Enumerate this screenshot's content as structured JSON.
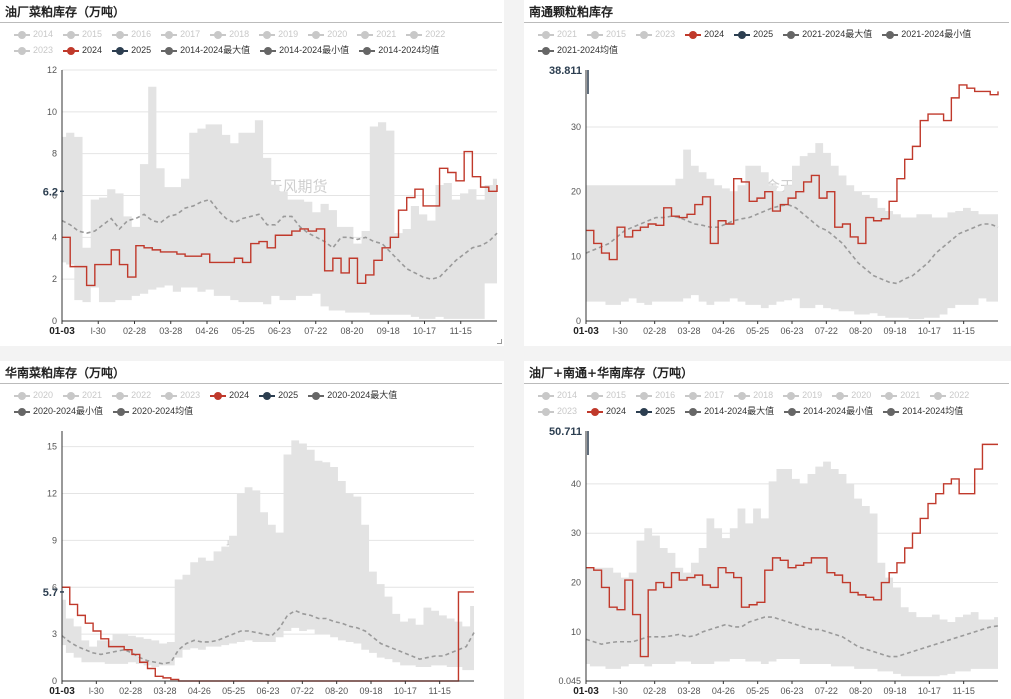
{
  "watermark": "紫金天风期货",
  "x_ticks": [
    "01-03",
    "l-30",
    "02-28",
    "03-28",
    "04-26",
    "05-25",
    "06-23",
    "07-22",
    "08-20",
    "09-18",
    "10-17",
    "11-15"
  ],
  "charts": [
    {
      "title": "油厂菜粕库存（万吨）",
      "legend": [
        {
          "label": "2014",
          "color": "#c8c8c8",
          "state": "off"
        },
        {
          "label": "2015",
          "color": "#c8c8c8",
          "state": "off"
        },
        {
          "label": "2016",
          "color": "#c8c8c8",
          "state": "off"
        },
        {
          "label": "2017",
          "color": "#c8c8c8",
          "state": "off"
        },
        {
          "label": "2018",
          "color": "#c8c8c8",
          "state": "off"
        },
        {
          "label": "2019",
          "color": "#c8c8c8",
          "state": "off"
        },
        {
          "label": "2020",
          "color": "#c8c8c8",
          "state": "off"
        },
        {
          "label": "2021",
          "color": "#c8c8c8",
          "state": "off"
        },
        {
          "label": "2022",
          "color": "#c8c8c8",
          "state": "off"
        },
        {
          "label": "2023",
          "color": "#c8c8c8",
          "state": "off"
        },
        {
          "label": "2024",
          "color": "#c0392b",
          "state": "on"
        },
        {
          "label": "2025",
          "color": "#2c3e50",
          "state": "on"
        },
        {
          "label": "2014-2024最大值",
          "color": "#666666",
          "state": "on"
        },
        {
          "label": "2014-2024最小值",
          "color": "#666666",
          "state": "on"
        },
        {
          "label": "2014-2024均值",
          "color": "#666666",
          "state": "on"
        }
      ],
      "y_ticks": [
        "0",
        "2",
        "4",
        "6",
        "8",
        "10",
        "12"
      ],
      "ylim": [
        0,
        12
      ],
      "marker_label": "6.2",
      "marker_value": 6.2,
      "band_max": [
        8.8,
        9,
        8.8,
        3.5,
        5.8,
        5.9,
        6.3,
        6.1,
        5,
        4.5,
        7.5,
        11.2,
        7.3,
        6.4,
        6.4,
        6.8,
        9,
        9.2,
        9.4,
        9.4,
        8.9,
        8.5,
        9,
        9,
        9.6,
        7.8,
        6.5,
        6.2,
        5.8,
        5.8,
        5.7,
        5.2,
        5.6,
        5.3,
        4.5,
        4.5,
        3.7,
        4.3,
        9.3,
        9.5,
        9.1,
        4.2,
        4.4,
        5.5,
        5.1,
        4.8,
        6.5,
        6.6,
        5.8,
        6.1,
        6.3,
        5.8,
        6.5,
        6.8
      ],
      "band_min": [
        2.8,
        2.7,
        1,
        0.9,
        1.6,
        0.9,
        0.9,
        1,
        1,
        1.2,
        1.3,
        1.5,
        1.6,
        1.7,
        1.4,
        1.6,
        1.6,
        1.4,
        1.5,
        1.2,
        1.2,
        1,
        0.9,
        0.9,
        0.9,
        0.8,
        1.2,
        1,
        1,
        1.2,
        1.2,
        1.3,
        0.7,
        0.5,
        0.5,
        0.4,
        0.4,
        0.4,
        0.3,
        0.3,
        0.3,
        0.3,
        0.3,
        0.2,
        0.1,
        0.1,
        0.2,
        0.1,
        0.1,
        0.1,
        0.1,
        0.1,
        1.8,
        1.8
      ],
      "avg": [
        4.8,
        4.6,
        4.3,
        4.2,
        4.3,
        4.6,
        4.9,
        4.4,
        4.8,
        4.9,
        5.1,
        4.8,
        4.7,
        5,
        5.1,
        5.4,
        5.5,
        5.7,
        5.8,
        5.3,
        4.9,
        4.7,
        4.9,
        5,
        5.1,
        4.6,
        4.6,
        5,
        5,
        4.5,
        4.2,
        4,
        3.8,
        3.5,
        4,
        4,
        3.9,
        4,
        3.8,
        3.7,
        3.3,
        2.9,
        2.5,
        2.3,
        2.1,
        2,
        2.1,
        2.5,
        2.9,
        3.2,
        3.5,
        3.6,
        3.8,
        4.2
      ],
      "current": [
        4,
        2.6,
        2.6,
        1.7,
        2.7,
        2.7,
        3.4,
        2.7,
        2.1,
        3.6,
        3.5,
        3.4,
        3.3,
        3.3,
        3.2,
        3.1,
        3.1,
        3.2,
        2.8,
        2.8,
        2.8,
        3,
        2.8,
        3.7,
        3.8,
        3.5,
        4.1,
        4.1,
        4.3,
        4.4,
        4.3,
        4.4,
        2.4,
        3,
        2.3,
        3,
        1.8,
        2.2,
        2.9,
        3.5,
        4,
        5.3,
        5.9,
        6.3,
        5.5,
        5.5,
        7.3,
        7.1,
        6.7,
        8.1,
        6.9,
        6.4,
        6.2,
        6.5
      ]
    },
    {
      "title": "南通颗粒粕库存",
      "legend": [
        {
          "label": "2021",
          "color": "#c8c8c8",
          "state": "off"
        },
        {
          "label": "2015",
          "color": "#c8c8c8",
          "state": "off"
        },
        {
          "label": "2023",
          "color": "#c8c8c8",
          "state": "off"
        },
        {
          "label": "2024",
          "color": "#c0392b",
          "state": "on"
        },
        {
          "label": "2025",
          "color": "#2c3e50",
          "state": "on"
        },
        {
          "label": "2021-2024最大值",
          "color": "#666666",
          "state": "on"
        },
        {
          "label": "2021-2024最小值",
          "color": "#666666",
          "state": "on"
        },
        {
          "label": "2021-2024均值",
          "color": "#666666",
          "state": "on"
        }
      ],
      "y_ticks": [
        "0",
        "10",
        "20",
        "30"
      ],
      "ylim": [
        0,
        38.811
      ],
      "marker_label": "38.811",
      "marker_value": 38.811,
      "band_max": [
        21,
        21,
        21,
        21,
        21,
        21,
        21,
        21,
        21,
        21,
        21,
        21,
        22,
        26.5,
        24,
        23,
        22,
        21,
        20.5,
        20,
        21,
        24,
        24,
        23,
        21,
        20,
        21,
        24,
        25.5,
        26,
        27.5,
        26,
        24,
        22.5,
        21,
        20,
        19.5,
        19,
        17.5,
        17,
        16.5,
        16,
        16,
        16.5,
        16.5,
        16,
        16,
        16.8,
        17,
        17.5,
        17,
        16.5,
        16.5,
        16.5
      ],
      "band_min": [
        3,
        3,
        3,
        2.5,
        2.5,
        3,
        3.5,
        2.8,
        2.5,
        3,
        3,
        3,
        3,
        3.5,
        4,
        3,
        2.5,
        3,
        3,
        3.5,
        3,
        2.5,
        2.5,
        2,
        2.5,
        3,
        3.2,
        3.5,
        2,
        2,
        2.5,
        2,
        1.8,
        1.5,
        1.5,
        1,
        1,
        1.2,
        0.8,
        0.5,
        0.5,
        0.5,
        0.3,
        0.3,
        0.5,
        0.5,
        1,
        2,
        2.5,
        2.5,
        2.5,
        3.5,
        3,
        3
      ],
      "avg": [
        10.5,
        11,
        11.5,
        12,
        13,
        14,
        14.5,
        15,
        15.5,
        16,
        16,
        16.2,
        16,
        15.5,
        15,
        14.8,
        14.5,
        14.5,
        15,
        15.5,
        15.8,
        16,
        16.5,
        17,
        17.5,
        17.8,
        18,
        17.5,
        16.5,
        15.5,
        14.5,
        14,
        13,
        12,
        10.5,
        9,
        8,
        7,
        6.5,
        6,
        5.8,
        6.5,
        7,
        8,
        9,
        10.5,
        11.5,
        12.5,
        13.5,
        14,
        14.5,
        15,
        15,
        14.5
      ],
      "current": [
        14,
        12,
        10.5,
        9.5,
        14.5,
        13,
        14,
        14.5,
        15,
        14.8,
        17.5,
        16.2,
        16,
        16.5,
        18,
        19.2,
        12,
        15.5,
        15,
        22,
        21.5,
        18.5,
        19,
        20,
        17,
        18,
        19,
        20,
        21.5,
        22.5,
        19,
        20,
        14.5,
        15,
        13,
        12,
        16,
        15.5,
        15.8,
        18.5,
        22,
        25,
        27,
        31,
        32,
        32,
        31,
        34.5,
        36.5,
        36,
        35.5,
        35.5,
        35,
        35.5
      ]
    },
    {
      "title": "华南菜粕库存（万吨）",
      "legend": [
        {
          "label": "2020",
          "color": "#c8c8c8",
          "state": "off"
        },
        {
          "label": "2021",
          "color": "#c8c8c8",
          "state": "off"
        },
        {
          "label": "2022",
          "color": "#c8c8c8",
          "state": "off"
        },
        {
          "label": "2023",
          "color": "#c8c8c8",
          "state": "off"
        },
        {
          "label": "2024",
          "color": "#c0392b",
          "state": "on"
        },
        {
          "label": "2025",
          "color": "#2c3e50",
          "state": "on"
        },
        {
          "label": "2020-2024最大值",
          "color": "#666666",
          "state": "on"
        },
        {
          "label": "2020-2024最小值",
          "color": "#666666",
          "state": "on"
        },
        {
          "label": "2020-2024均值",
          "color": "#666666",
          "state": "on"
        }
      ],
      "y_ticks": [
        "0",
        "3",
        "6",
        "9",
        "12",
        "15"
      ],
      "ylim": [
        0,
        16
      ],
      "marker_label": "5.7",
      "marker_value": 5.7,
      "band_max": [
        5.2,
        4,
        3.5,
        2.6,
        2.2,
        2.6,
        2.6,
        3,
        3,
        2.9,
        2.8,
        2.7,
        2.6,
        2.4,
        2.5,
        6.5,
        6.8,
        7.6,
        7.9,
        7.7,
        8.3,
        8.6,
        9.3,
        12,
        12.4,
        12.2,
        10.8,
        10,
        9.5,
        14.5,
        15.4,
        15.2,
        14.8,
        14.1,
        14,
        13.7,
        12.8,
        12,
        11.8,
        10,
        7,
        6.2,
        5.4,
        4.3,
        3.8,
        4,
        3.6,
        4.7,
        4.5,
        4.2,
        4,
        3.8,
        3.5,
        4.8
      ],
      "band_min": [
        2.3,
        1.8,
        1.5,
        1.2,
        1.2,
        1.2,
        1.1,
        1.1,
        1.1,
        1.2,
        1.1,
        1,
        0.9,
        1,
        1,
        1.5,
        2,
        2.1,
        2,
        2.2,
        2.2,
        2.3,
        2.4,
        2.5,
        2.6,
        2.5,
        2.5,
        2.5,
        2.8,
        3.2,
        3.4,
        3.2,
        3.3,
        3,
        3,
        2.8,
        2.6,
        2.5,
        2.4,
        2,
        1.8,
        1.5,
        1.4,
        1.2,
        1,
        1,
        0.9,
        0.9,
        1,
        1,
        0.9,
        0.9,
        0.7,
        0.7
      ],
      "avg": [
        2.9,
        2.5,
        2.2,
        2,
        1.8,
        1.7,
        1.8,
        1.9,
        2,
        1.8,
        1.5,
        1.3,
        1.2,
        1.1,
        1.2,
        2,
        2.4,
        2.6,
        2.5,
        2.5,
        2.6,
        2.8,
        3,
        3.2,
        3.2,
        3.1,
        3,
        2.9,
        3.4,
        4.2,
        4.5,
        4.3,
        4.2,
        4,
        4,
        3.8,
        3.7,
        3.5,
        3.4,
        3.2,
        2.8,
        2.4,
        2.2,
        2,
        1.8,
        1.6,
        1.4,
        1.5,
        1.6,
        1.6,
        1.8,
        2,
        2.2,
        3.1
      ],
      "current": [
        6,
        4.9,
        4.2,
        3.7,
        3.2,
        2.7,
        2.2,
        2.2,
        2,
        1.7,
        1.2,
        0.8,
        0.3,
        0.2,
        0.1,
        0,
        0,
        0,
        0,
        0,
        0,
        0,
        0,
        0,
        0,
        0,
        0,
        0,
        0,
        0,
        0,
        0,
        0,
        0,
        0,
        0,
        0,
        0,
        0,
        0,
        0,
        0,
        0,
        0,
        0,
        0,
        0,
        0,
        0,
        0,
        0,
        5.7,
        5.7,
        5.7
      ]
    },
    {
      "title": "油厂+南通+华南库存（万吨）",
      "legend": [
        {
          "label": "2014",
          "color": "#c8c8c8",
          "state": "off"
        },
        {
          "label": "2015",
          "color": "#c8c8c8",
          "state": "off"
        },
        {
          "label": "2016",
          "color": "#c8c8c8",
          "state": "off"
        },
        {
          "label": "2017",
          "color": "#c8c8c8",
          "state": "off"
        },
        {
          "label": "2018",
          "color": "#c8c8c8",
          "state": "off"
        },
        {
          "label": "2019",
          "color": "#c8c8c8",
          "state": "off"
        },
        {
          "label": "2020",
          "color": "#c8c8c8",
          "state": "off"
        },
        {
          "label": "2021",
          "color": "#c8c8c8",
          "state": "off"
        },
        {
          "label": "2022",
          "color": "#c8c8c8",
          "state": "off"
        },
        {
          "label": "2023",
          "color": "#c8c8c8",
          "state": "off"
        },
        {
          "label": "2024",
          "color": "#c0392b",
          "state": "on"
        },
        {
          "label": "2025",
          "color": "#2c3e50",
          "state": "on"
        },
        {
          "label": "2014-2024最大值",
          "color": "#666666",
          "state": "on"
        },
        {
          "label": "2014-2024最小值",
          "color": "#666666",
          "state": "on"
        },
        {
          "label": "2014-2024均值",
          "color": "#666666",
          "state": "on"
        }
      ],
      "y_ticks": [
        "0.045",
        "10",
        "20",
        "30",
        "40"
      ],
      "ylim": [
        0.045,
        50.711
      ],
      "marker_label": "50.711",
      "marker_value": 50.711,
      "band_max": [
        23,
        23,
        23,
        23,
        22,
        21,
        22,
        28.5,
        31,
        29.5,
        27,
        26,
        23,
        22,
        24,
        27,
        33,
        31,
        29,
        31,
        35,
        32,
        35,
        33,
        40.5,
        43,
        43,
        41,
        40,
        42,
        43.5,
        44.5,
        43,
        42,
        40,
        37,
        35.5,
        34,
        24,
        21,
        19,
        15,
        14,
        13,
        13,
        13.5,
        12.5,
        12,
        13,
        13.5,
        14,
        12.5,
        12.5,
        13
      ],
      "band_min": [
        3.5,
        3,
        3,
        2.5,
        2.5,
        3,
        3.5,
        3.5,
        3,
        3.5,
        3.5,
        3.5,
        4,
        4,
        3.5,
        3.5,
        3.5,
        4,
        4,
        4.5,
        4.5,
        4,
        4,
        3.5,
        4,
        4.5,
        4.5,
        4.5,
        3.5,
        3.5,
        3.5,
        3.5,
        3,
        3,
        3,
        2.5,
        2.5,
        2.5,
        2,
        2,
        1.5,
        1,
        1,
        1,
        1,
        1,
        1.2,
        1.5,
        2,
        2,
        2.5,
        2.5,
        2.5,
        2.5
      ],
      "avg": [
        8.5,
        8,
        7.5,
        7.8,
        8,
        8,
        8,
        8.5,
        9,
        9,
        9,
        9.2,
        9.5,
        9,
        9.2,
        10,
        10.5,
        11,
        11.5,
        11,
        11,
        12,
        12.5,
        13,
        13,
        12.5,
        12,
        11.5,
        11,
        10.5,
        10.5,
        10,
        9.5,
        9,
        8,
        7,
        6.5,
        6,
        5.5,
        5,
        5,
        5.5,
        6,
        6.5,
        7,
        7.5,
        8,
        8.5,
        9,
        9.5,
        10,
        10.5,
        11,
        11.2
      ],
      "current": [
        23,
        22.5,
        19,
        15,
        14.5,
        20.5,
        13.5,
        5,
        18.5,
        20,
        19,
        22,
        20.5,
        21,
        21.5,
        19.5,
        19,
        23,
        22,
        21,
        15,
        15.5,
        16,
        22.5,
        25,
        24.5,
        23,
        23.5,
        24,
        25,
        25,
        22,
        21.5,
        20,
        18,
        17.5,
        17,
        16.5,
        20,
        22,
        24,
        27,
        30,
        33,
        36,
        38,
        40,
        41,
        38,
        38,
        43,
        48,
        48,
        48
      ]
    }
  ]
}
